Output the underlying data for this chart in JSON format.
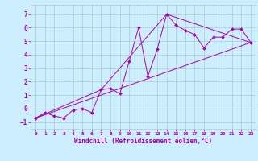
{
  "xlabel": "Windchill (Refroidissement éolien,°C)",
  "background_color": "#cceeff",
  "grid_color": "#aacccc",
  "line_color": "#aa00aa",
  "xlim": [
    -0.5,
    23.5
  ],
  "ylim": [
    -1.5,
    7.7
  ],
  "xticks": [
    0,
    1,
    2,
    3,
    4,
    5,
    6,
    7,
    8,
    9,
    10,
    11,
    12,
    13,
    14,
    15,
    16,
    17,
    18,
    19,
    20,
    21,
    22,
    23
  ],
  "yticks": [
    -1,
    0,
    1,
    2,
    3,
    4,
    5,
    6,
    7
  ],
  "series1_x": [
    0,
    1,
    2,
    3,
    4,
    5,
    6,
    7,
    8,
    9,
    10,
    11,
    12,
    13,
    14,
    15,
    16,
    17,
    18,
    19,
    20,
    21,
    22,
    23
  ],
  "series1_y": [
    -0.7,
    -0.3,
    -0.55,
    -0.7,
    -0.1,
    0.0,
    -0.3,
    1.4,
    1.5,
    1.1,
    3.5,
    6.0,
    2.4,
    4.4,
    7.0,
    6.2,
    5.8,
    5.5,
    4.5,
    5.3,
    5.3,
    5.9,
    5.9,
    4.9
  ],
  "series2_x": [
    0,
    7,
    14,
    23
  ],
  "series2_y": [
    -0.7,
    1.4,
    7.0,
    4.9
  ],
  "series3_x": [
    0,
    23
  ],
  "series3_y": [
    -0.7,
    4.9
  ],
  "xlabel_fontsize": 5.5,
  "tick_fontsize": 5.0,
  "marker_size": 2.0,
  "line_width": 0.7
}
